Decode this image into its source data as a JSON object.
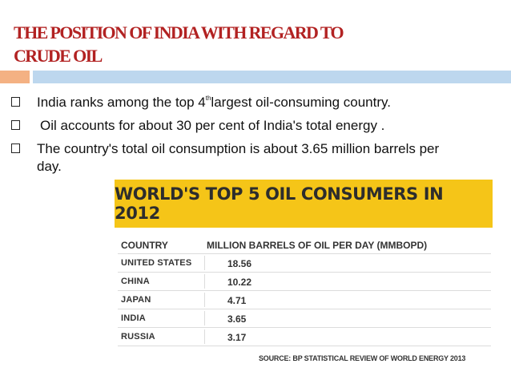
{
  "slide": {
    "title_line1": "THE POSITION OF INDIA WITH REGARD TO",
    "title_line2": "CRUDE OIL",
    "bullets": [
      {
        "pre": "India ranks among the top 4",
        "sup": "th",
        "post": "largest oil-consuming country."
      },
      {
        "text": "Oil accounts for about 30 per cent of India's total energy ."
      },
      {
        "text": "The country's total oil consumption is about 3.65 million barrels per day."
      }
    ]
  },
  "infographic": {
    "banner_title": "WORLD'S TOP 5 OIL CONSUMERS IN 2012",
    "col_country": "COUNTRY",
    "col_value": "MILLION BARRELS OF OIL PER DAY (MMBOPD)",
    "rows": [
      {
        "country": "UNITED STATES",
        "value": "18.56"
      },
      {
        "country": "CHINA",
        "value": "10.22"
      },
      {
        "country": "JAPAN",
        "value": "4.71"
      },
      {
        "country": "INDIA",
        "value": "3.65"
      },
      {
        "country": "RUSSIA",
        "value": "3.17"
      }
    ],
    "source": "SOURCE: BP STATISTICAL REVIEW OF WORLD ENERGY 2013",
    "banner_color": "#f5c518"
  },
  "colors": {
    "title": "#b22222",
    "accent_orange": "#f4b183",
    "accent_blue": "#bdd7ee"
  }
}
